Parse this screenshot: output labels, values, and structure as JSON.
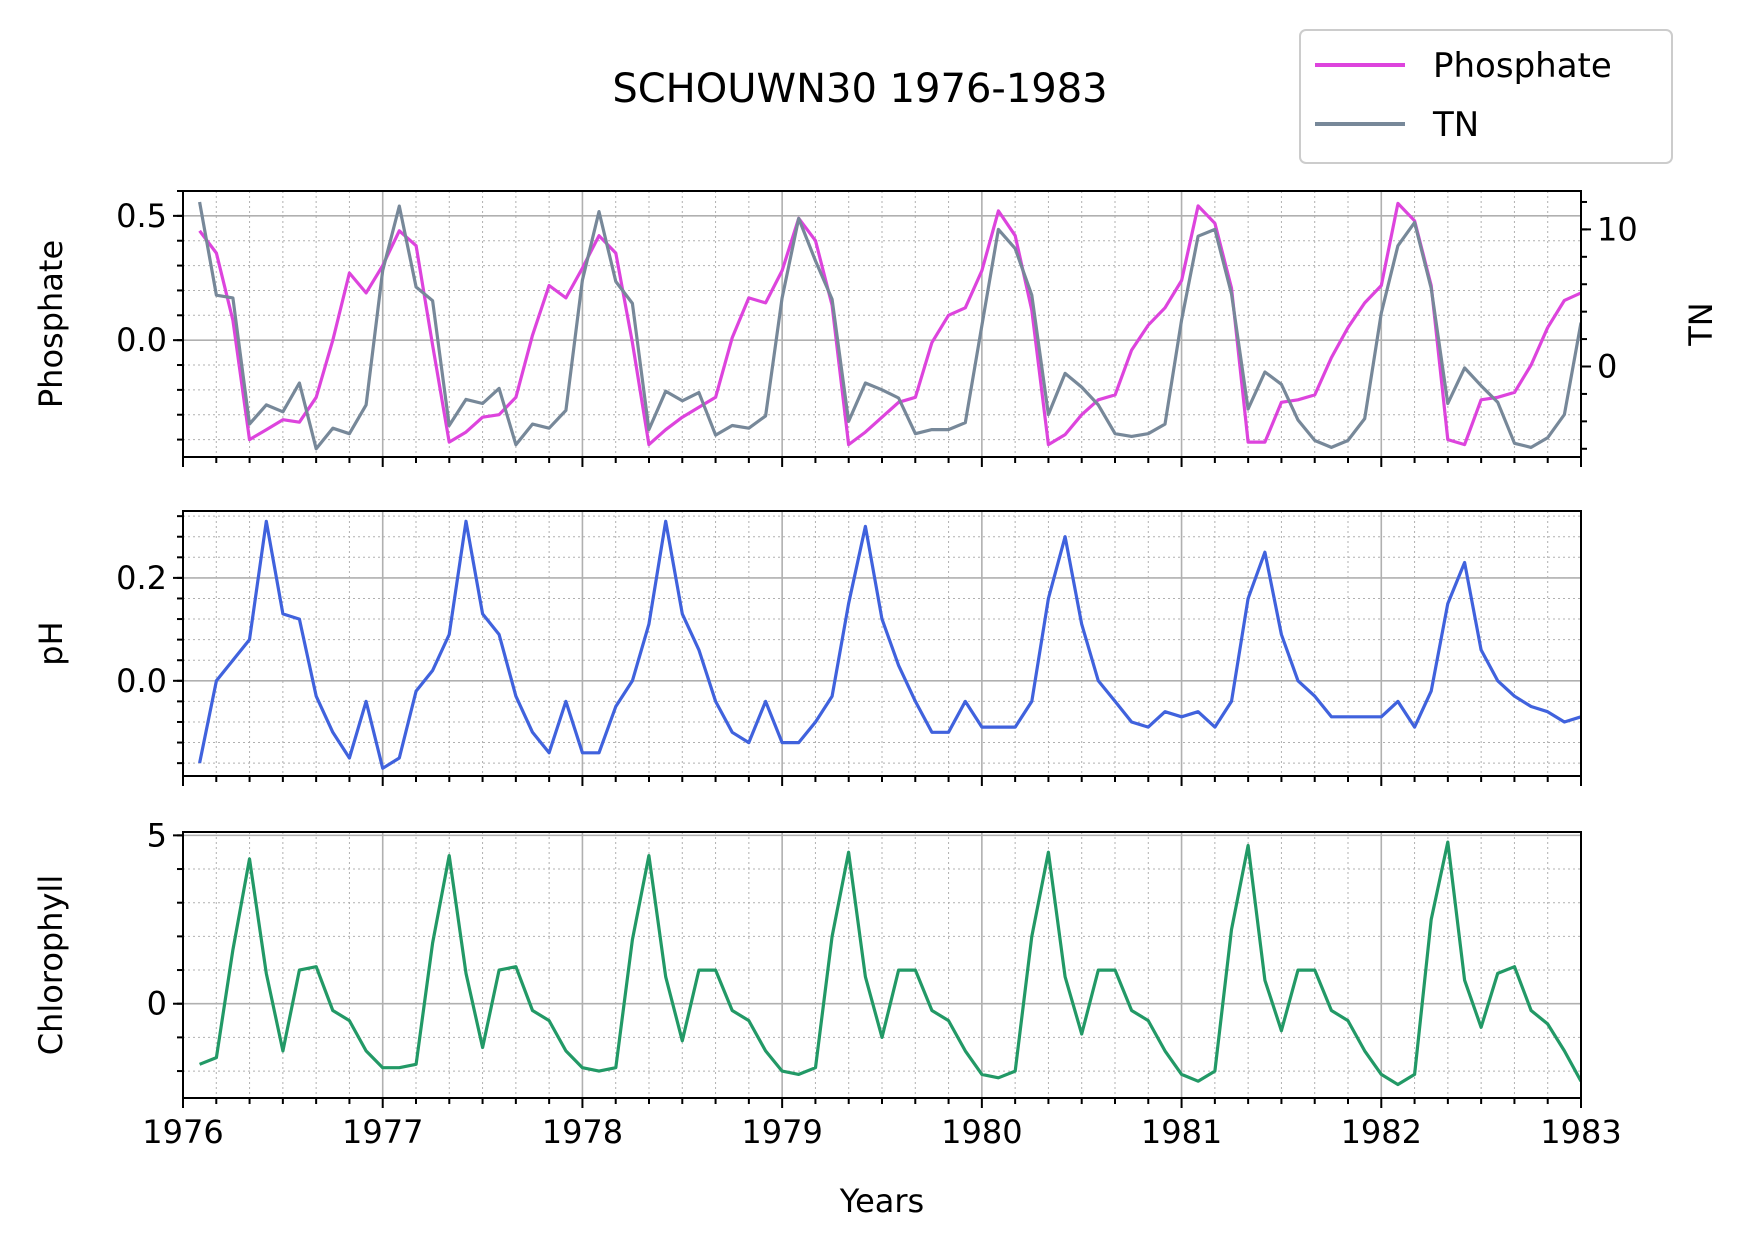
{
  "title": "SCHOUWN30 1976-1983",
  "legend": {
    "placement": "upper-right",
    "entries": [
      {
        "label": "Phosphate",
        "color": "#dd44dd"
      },
      {
        "label": "TN",
        "color": "#778899"
      }
    ]
  },
  "chart_data": {
    "type": "line",
    "xlabel": "Years",
    "xlim": [
      1976,
      1983
    ],
    "x_ticks": [
      "1976",
      "1977",
      "1978",
      "1979",
      "1980",
      "1981",
      "1982",
      "1983"
    ],
    "x": [
      1976.083,
      1976.167,
      1976.25,
      1976.333,
      1976.417,
      1976.5,
      1976.583,
      1976.667,
      1976.75,
      1976.833,
      1976.917,
      1977.0,
      1977.083,
      1977.167,
      1977.25,
      1977.333,
      1977.417,
      1977.5,
      1977.583,
      1977.667,
      1977.75,
      1977.833,
      1977.917,
      1978.0,
      1978.083,
      1978.167,
      1978.25,
      1978.333,
      1978.417,
      1978.5,
      1978.583,
      1978.667,
      1978.75,
      1978.833,
      1978.917,
      1979.0,
      1979.083,
      1979.167,
      1979.25,
      1979.333,
      1979.417,
      1979.5,
      1979.583,
      1979.667,
      1979.75,
      1979.833,
      1979.917,
      1980.0,
      1980.083,
      1980.167,
      1980.25,
      1980.333,
      1980.417,
      1980.5,
      1980.583,
      1980.667,
      1980.75,
      1980.833,
      1980.917,
      1981.0,
      1981.083,
      1981.167,
      1981.25,
      1981.333,
      1981.417,
      1981.5,
      1981.583,
      1981.667,
      1981.75,
      1981.833,
      1981.917,
      1982.0,
      1982.083,
      1982.167,
      1982.25,
      1982.333,
      1982.417,
      1982.5,
      1982.583,
      1982.667,
      1982.75,
      1982.833,
      1982.917,
      1983.0
    ],
    "grid": true,
    "panels": [
      {
        "ylabel": "Phosphate",
        "ylim": [
          -0.47,
          0.6
        ],
        "y_ticks": [
          "0.5",
          "0.0"
        ],
        "y_tick_values": [
          0.5,
          0.0
        ],
        "series": [
          {
            "name": "Phosphate",
            "color": "#dd44dd",
            "axis": "left",
            "values": [
              0.44,
              0.35,
              0.08,
              -0.4,
              -0.36,
              -0.32,
              -0.33,
              -0.23,
              0.0,
              0.27,
              0.19,
              0.3,
              0.44,
              0.38,
              -0.02,
              -0.41,
              -0.37,
              -0.31,
              -0.3,
              -0.23,
              0.02,
              0.22,
              0.17,
              0.29,
              0.42,
              0.35,
              -0.01,
              -0.42,
              -0.36,
              -0.31,
              -0.27,
              -0.23,
              0.01,
              0.17,
              0.15,
              0.28,
              0.49,
              0.4,
              0.14,
              -0.42,
              -0.37,
              -0.31,
              -0.25,
              -0.23,
              -0.01,
              0.1,
              0.13,
              0.28,
              0.52,
              0.42,
              0.12,
              -0.42,
              -0.38,
              -0.3,
              -0.24,
              -0.22,
              -0.04,
              0.06,
              0.13,
              0.24,
              0.54,
              0.47,
              0.21,
              -0.41,
              -0.41,
              -0.25,
              -0.24,
              -0.22,
              -0.07,
              0.05,
              0.15,
              0.22,
              0.55,
              0.48,
              0.22,
              -0.4,
              -0.42,
              -0.24,
              -0.23,
              -0.21,
              -0.1,
              0.05,
              0.16,
              0.19
            ]
          },
          {
            "name": "TN",
            "color": "#778899",
            "axis": "right",
            "values": [
              12.0,
              5.2,
              5.0,
              -4.2,
              -2.8,
              -3.3,
              -1.2,
              -6.0,
              -4.5,
              -4.9,
              -2.8,
              7.0,
              11.7,
              5.8,
              4.8,
              -4.3,
              -2.4,
              -2.7,
              -1.6,
              -5.7,
              -4.2,
              -4.5,
              -3.2,
              6.3,
              11.3,
              6.2,
              4.6,
              -4.6,
              -1.8,
              -2.5,
              -1.9,
              -5.0,
              -4.3,
              -4.5,
              -3.6,
              5.0,
              10.8,
              7.7,
              4.9,
              -4.0,
              -1.2,
              -1.7,
              -2.3,
              -4.9,
              -4.6,
              -4.6,
              -4.1,
              3.0,
              10.0,
              8.6,
              5.2,
              -3.5,
              -0.5,
              -1.5,
              -2.8,
              -4.9,
              -5.1,
              -4.9,
              -4.2,
              3.4,
              9.5,
              10.0,
              5.3,
              -3.1,
              -0.4,
              -1.3,
              -3.9,
              -5.4,
              -5.9,
              -5.4,
              -3.8,
              3.9,
              8.8,
              10.5,
              5.7,
              -2.7,
              -0.1,
              -1.4,
              -2.6,
              -5.6,
              -5.9,
              -5.2,
              -3.5,
              3.2
            ]
          }
        ],
        "right_axis": {
          "ylabel": "TN",
          "ylim": [
            -6.6,
            12.8
          ],
          "y_ticks": [
            "10",
            "0"
          ],
          "y_tick_values": [
            10,
            0
          ]
        }
      },
      {
        "ylabel": "pH",
        "ylim": [
          -0.185,
          0.33
        ],
        "y_ticks": [
          "0.2",
          "0.0"
        ],
        "y_tick_values": [
          0.2,
          0.0
        ],
        "series": [
          {
            "name": "pH",
            "color": "#4062dd",
            "values": [
              -0.16,
              0.0,
              0.04,
              0.08,
              0.31,
              0.13,
              0.12,
              -0.03,
              -0.1,
              -0.15,
              -0.04,
              -0.17,
              -0.15,
              -0.02,
              0.02,
              0.09,
              0.31,
              0.13,
              0.09,
              -0.03,
              -0.1,
              -0.14,
              -0.04,
              -0.14,
              -0.14,
              -0.05,
              0.0,
              0.11,
              0.31,
              0.13,
              0.06,
              -0.04,
              -0.1,
              -0.12,
              -0.04,
              -0.12,
              -0.12,
              -0.08,
              -0.03,
              0.15,
              0.3,
              0.12,
              0.03,
              -0.04,
              -0.1,
              -0.1,
              -0.04,
              -0.09,
              -0.09,
              -0.09,
              -0.04,
              0.16,
              0.28,
              0.11,
              0.0,
              -0.04,
              -0.08,
              -0.09,
              -0.06,
              -0.07,
              -0.06,
              -0.09,
              -0.04,
              0.16,
              0.25,
              0.09,
              0.0,
              -0.03,
              -0.07,
              -0.07,
              -0.07,
              -0.07,
              -0.04,
              -0.09,
              -0.02,
              0.15,
              0.23,
              0.06,
              0.0,
              -0.03,
              -0.05,
              -0.06,
              -0.08,
              -0.07
            ]
          }
        ]
      },
      {
        "ylabel": "Chlorophyll",
        "ylim": [
          -2.8,
          5.1
        ],
        "y_ticks": [
          "5",
          "0"
        ],
        "y_tick_values": [
          5,
          0
        ],
        "series": [
          {
            "name": "Chlorophyll",
            "color": "#229966",
            "values": [
              -1.8,
              -1.6,
              1.6,
              4.3,
              0.9,
              -1.4,
              1.0,
              1.1,
              -0.2,
              -0.5,
              -1.4,
              -1.9,
              -1.9,
              -1.8,
              1.8,
              4.4,
              0.9,
              -1.3,
              1.0,
              1.1,
              -0.2,
              -0.5,
              -1.4,
              -1.9,
              -2.0,
              -1.9,
              1.9,
              4.4,
              0.8,
              -1.1,
              1.0,
              1.0,
              -0.2,
              -0.5,
              -1.4,
              -2.0,
              -2.1,
              -1.9,
              2.0,
              4.5,
              0.8,
              -1.0,
              1.0,
              1.0,
              -0.2,
              -0.5,
              -1.4,
              -2.1,
              -2.2,
              -2.0,
              2.0,
              4.5,
              0.8,
              -0.9,
              1.0,
              1.0,
              -0.2,
              -0.5,
              -1.4,
              -2.1,
              -2.3,
              -2.0,
              2.2,
              4.7,
              0.7,
              -0.8,
              1.0,
              1.0,
              -0.2,
              -0.5,
              -1.4,
              -2.1,
              -2.4,
              -2.1,
              2.5,
              4.8,
              0.7,
              -0.7,
              0.9,
              1.1,
              -0.2,
              -0.6,
              -1.4,
              -2.3
            ]
          }
        ]
      }
    ]
  }
}
